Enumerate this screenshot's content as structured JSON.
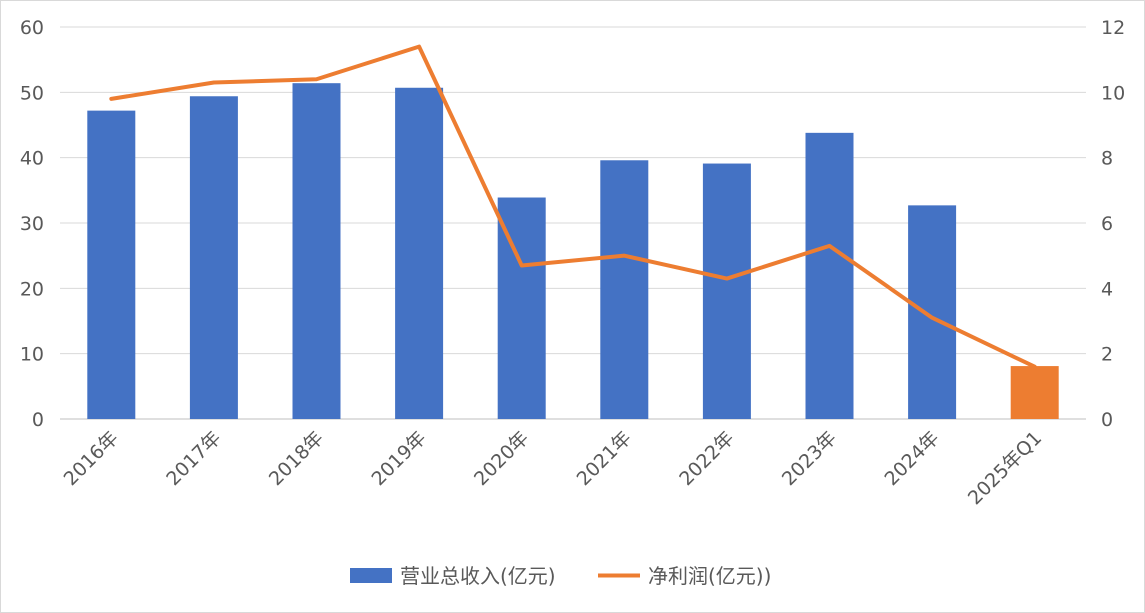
{
  "chart_data": {
    "type": "bar",
    "categories": [
      "2016年",
      "2017年",
      "2018年",
      "2019年",
      "2020年",
      "2021年",
      "2022年",
      "2023年",
      "2024年",
      "2025年Q1"
    ],
    "series": [
      {
        "name": "营业总收入(亿元)",
        "type": "bar",
        "axis": "left",
        "color": "#4472c4",
        "highlight_color": "#ed7d31",
        "highlight_index": 9,
        "values": [
          47.2,
          49.4,
          51.4,
          50.7,
          33.9,
          39.6,
          39.1,
          43.8,
          32.7,
          8.1
        ]
      },
      {
        "name": "净利润(亿元))",
        "type": "line",
        "axis": "right",
        "color": "#ed7d31",
        "values": [
          9.8,
          10.3,
          10.4,
          11.4,
          4.7,
          5.0,
          4.3,
          5.3,
          3.1,
          1.6
        ]
      }
    ],
    "y_left": {
      "min": 0,
      "max": 60,
      "ticks": [
        "0",
        "10",
        "20",
        "30",
        "40",
        "50",
        "60"
      ]
    },
    "y_right": {
      "min": 0,
      "max": 12,
      "ticks": [
        "0",
        "2",
        "4",
        "6",
        "8",
        "10",
        "12"
      ]
    },
    "grid": true,
    "legend": "bottom"
  }
}
